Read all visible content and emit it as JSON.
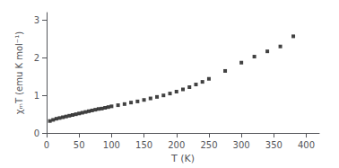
{
  "chart_data": {
    "type": "scatter",
    "x": [
      5,
      10,
      15,
      20,
      25,
      30,
      35,
      40,
      45,
      50,
      55,
      60,
      65,
      70,
      75,
      80,
      85,
      90,
      95,
      100,
      110,
      120,
      130,
      140,
      150,
      160,
      170,
      180,
      190,
      200,
      210,
      220,
      230,
      240,
      250,
      275,
      300,
      320,
      340,
      360,
      380
    ],
    "values": [
      0.32,
      0.35,
      0.38,
      0.4,
      0.42,
      0.44,
      0.46,
      0.48,
      0.5,
      0.52,
      0.54,
      0.56,
      0.58,
      0.6,
      0.62,
      0.64,
      0.65,
      0.67,
      0.69,
      0.71,
      0.74,
      0.77,
      0.81,
      0.84,
      0.88,
      0.92,
      0.96,
      1.0,
      1.05,
      1.1,
      1.16,
      1.22,
      1.29,
      1.36,
      1.44,
      1.65,
      1.87,
      2.03,
      2.17,
      2.3,
      2.57
    ],
    "xlabel": "T (K)",
    "ylabel": "χₘT (emu K mol⁻¹)",
    "xlim": [
      0,
      420
    ],
    "ylim": [
      0,
      3.2
    ],
    "xticks": [
      0,
      50,
      100,
      150,
      200,
      250,
      300,
      350,
      400
    ],
    "yticks": [
      0,
      1,
      2,
      3
    ],
    "color": "#111111",
    "marker": "square",
    "grid": false
  }
}
